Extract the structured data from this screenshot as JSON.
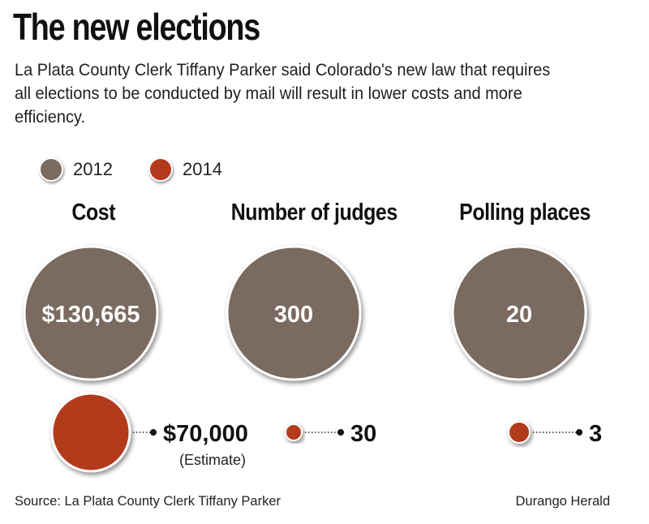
{
  "title": "The new elections",
  "intro": "La Plata County Clerk Tiffany Parker said Colorado's new law that requires all elections to be conducted by mail will result in lower costs and more efficiency.",
  "legend": [
    {
      "label": "2012",
      "color": "#7a6b5e"
    },
    {
      "label": "2014",
      "color": "#b23a1c"
    }
  ],
  "source": "Source: La Plata County Clerk Tiffany Parker",
  "credit": "Durango Herald",
  "chart_data": {
    "type": "bubble",
    "series": [
      {
        "name": "2012",
        "color": "#7a6b5e"
      },
      {
        "name": "2014",
        "color": "#b23a1c"
      }
    ],
    "categories": [
      "Cost",
      "Number of judges",
      "Polling places"
    ],
    "panels": [
      {
        "category": "Cost",
        "value_2012": 130665,
        "label_2012": "$130,665",
        "value_2014": 70000,
        "label_2014": "$70,000",
        "note_2014": "(Estimate)"
      },
      {
        "category": "Number of judges",
        "value_2012": 300,
        "label_2012": "300",
        "value_2014": 30,
        "label_2014": "30",
        "note_2014": ""
      },
      {
        "category": "Polling places",
        "value_2012": 20,
        "label_2012": "20",
        "value_2014": 3,
        "label_2014": "3",
        "note_2014": ""
      }
    ]
  }
}
